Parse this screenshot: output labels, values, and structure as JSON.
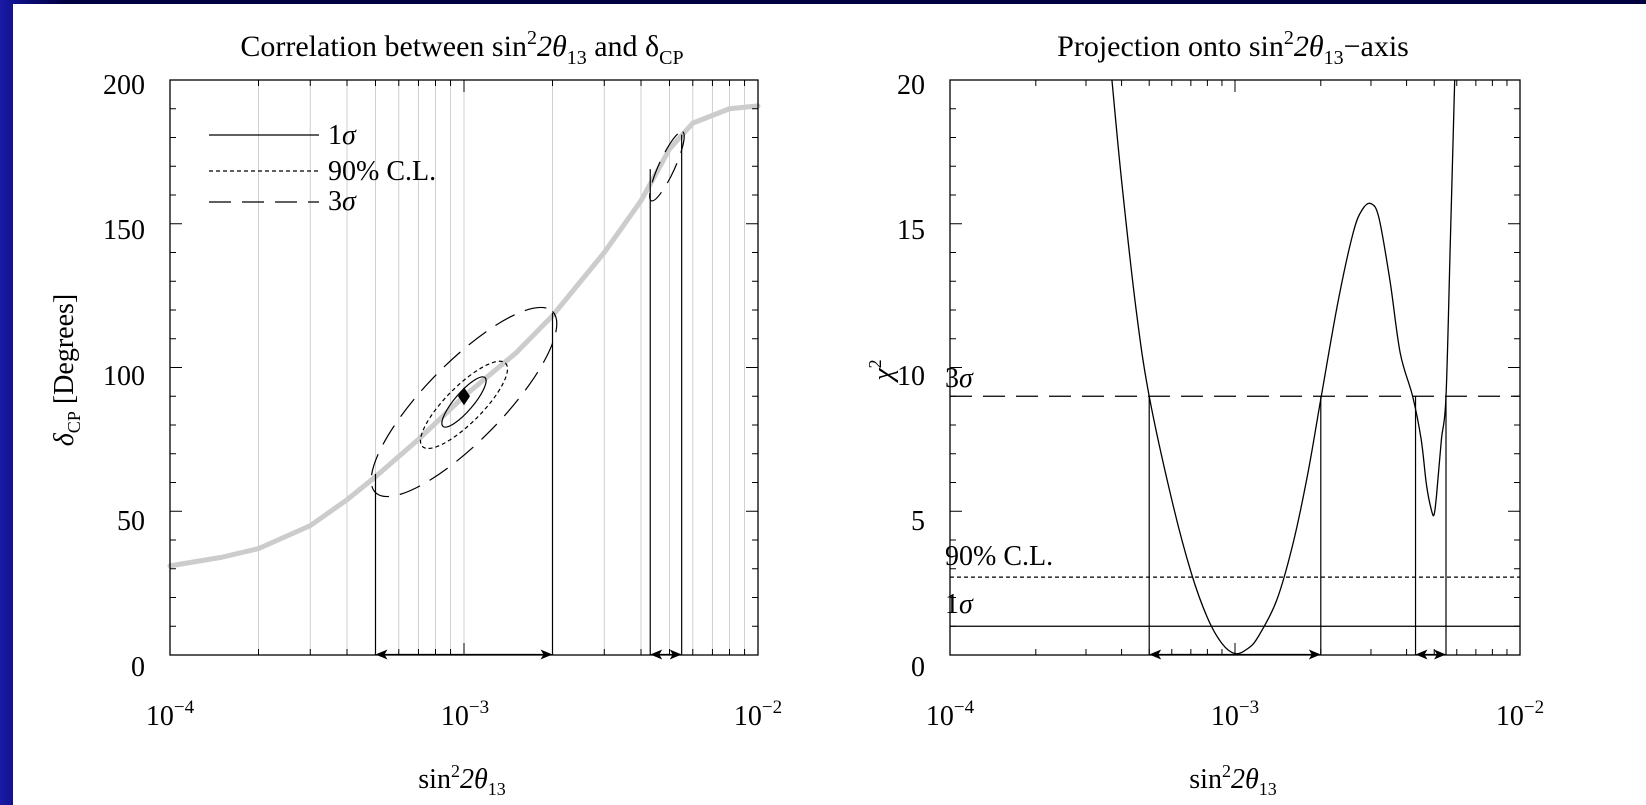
{
  "chart_data": [
    {
      "type": "line",
      "title_parts": {
        "a": "Correlation between sin",
        "sup": "2",
        "b": "2θ",
        "sub": "13",
        "c": " and δ",
        "sub2": "CP"
      },
      "xlabel_parts": {
        "a": "sin",
        "sup": "2",
        "b": "2θ",
        "sub": "13"
      },
      "ylabel_parts": {
        "a": "δ",
        "sub": "CP",
        "b": " [Degrees]"
      },
      "xscale": "log",
      "xlim": [
        0.0001,
        0.01
      ],
      "ylim": [
        0,
        200
      ],
      "xticks": [
        {
          "base": "10",
          "exp": "−4",
          "value": 0.0001
        },
        {
          "base": "10",
          "exp": "−3",
          "value": 0.001
        },
        {
          "base": "10",
          "exp": "−2",
          "value": 0.01
        }
      ],
      "yticks": [
        "0",
        "50",
        "100",
        "150",
        "200"
      ],
      "grid": "vertical minor gridlines at log decade subdivisions",
      "legend_position": "top-left",
      "legend": [
        {
          "label": "1σ",
          "style": "solid"
        },
        {
          "label": "90% C.L.",
          "style": "dotted"
        },
        {
          "label": "3σ",
          "style": "dashed"
        }
      ],
      "series": [
        {
          "style": "thick gray solid",
          "color": "#cccccc",
          "x": [
            0.0001,
            0.00015,
            0.0002,
            0.0003,
            0.0004,
            0.0005,
            0.0007,
            0.001,
            0.0015,
            0.002,
            0.003,
            0.004,
            0.005,
            0.006,
            0.008,
            0.01
          ],
          "y": [
            31,
            34,
            37,
            45,
            54,
            62,
            75,
            90,
            105,
            118,
            140,
            158,
            176,
            185,
            190,
            191
          ]
        }
      ],
      "best_fit_marker": {
        "x": 0.001,
        "y": 90,
        "shape": "diamond"
      },
      "ellipses": [
        {
          "style": "solid",
          "center": [
            0.001,
            88
          ],
          "x_range": [
            0.00085,
            0.00118
          ],
          "y_range": [
            80,
            97
          ]
        },
        {
          "style": "dotted",
          "center": [
            0.001,
            87
          ],
          "x_range": [
            0.00072,
            0.00138
          ],
          "y_range": [
            73,
            102
          ]
        },
        {
          "style": "dashed",
          "center": [
            0.001,
            88
          ],
          "x_range": [
            0.0005,
            0.002
          ],
          "y_range": [
            56,
            119
          ]
        },
        {
          "style": "dashed",
          "center": [
            0.0049,
            170
          ],
          "x_range": [
            0.0043,
            0.0055
          ],
          "y_range": [
            159,
            183
          ]
        }
      ],
      "intervals": [
        {
          "x": [
            0.0005,
            0.002
          ],
          "drop_from_y": [
            63,
            119
          ]
        },
        {
          "x": [
            0.0043,
            0.0055
          ],
          "drop_from_y": [
            169,
            181
          ]
        }
      ]
    },
    {
      "type": "line",
      "title_parts": {
        "a": "Projection onto sin",
        "sup": "2",
        "b": "2θ",
        "sub": "13",
        "c": "−axis"
      },
      "xlabel_parts": {
        "a": "sin",
        "sup": "2",
        "b": "2θ",
        "sub": "13"
      },
      "ylabel_parts": {
        "a": "χ",
        "sup": "2"
      },
      "xscale": "log",
      "xlim": [
        0.0001,
        0.01
      ],
      "ylim": [
        0,
        20
      ],
      "xticks": [
        {
          "base": "10",
          "exp": "−4",
          "value": 0.0001
        },
        {
          "base": "10",
          "exp": "−3",
          "value": 0.001
        },
        {
          "base": "10",
          "exp": "−2",
          "value": 0.01
        }
      ],
      "yticks": [
        "0",
        "5",
        "10",
        "15",
        "20"
      ],
      "series": [
        {
          "style": "solid",
          "x": [
            0.00037,
            0.0004,
            0.00045,
            0.0005,
            0.0006,
            0.0007,
            0.0008,
            0.0009,
            0.001,
            0.0011,
            0.0012,
            0.0014,
            0.0016,
            0.0018,
            0.002,
            0.0023,
            0.0026,
            0.0028,
            0.003,
            0.0032,
            0.0035,
            0.0038,
            0.0042,
            0.0045,
            0.0047,
            0.0049,
            0.005,
            0.0051,
            0.0053,
            0.0055,
            0.0057,
            0.0059
          ],
          "y": [
            20,
            16.5,
            12.0,
            9.0,
            5.4,
            2.9,
            1.3,
            0.4,
            0.05,
            0.2,
            0.6,
            1.9,
            3.9,
            6.3,
            8.9,
            12.3,
            14.7,
            15.5,
            15.7,
            15.2,
            13.0,
            10.5,
            9.0,
            7.5,
            5.9,
            5.0,
            4.9,
            5.6,
            7.5,
            9.0,
            14.5,
            20
          ]
        }
      ],
      "reference_lines": [
        {
          "label": "3σ",
          "y": 9,
          "style": "dashed"
        },
        {
          "label": "90% C.L.",
          "y": 2.71,
          "style": "dotted"
        },
        {
          "label": "1σ",
          "y": 1,
          "style": "solid"
        }
      ],
      "intervals": [
        {
          "x": [
            0.0005,
            0.002
          ],
          "drop_from_y": [
            9,
            9
          ]
        },
        {
          "x": [
            0.0043,
            0.0055
          ],
          "drop_from_y": [
            9,
            9
          ]
        }
      ]
    }
  ]
}
